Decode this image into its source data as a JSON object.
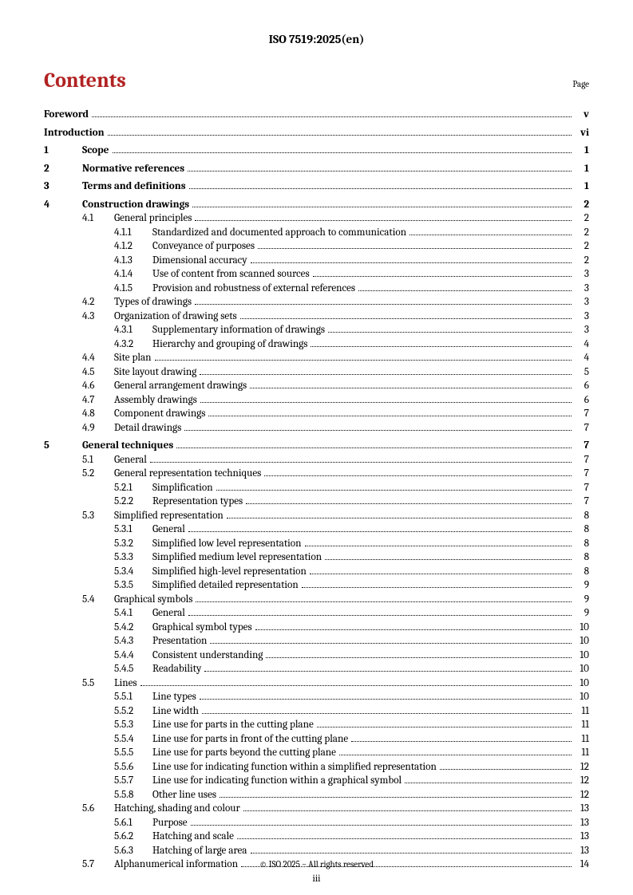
{
  "header": "ISO 7519:2025(en)",
  "title": "Contents",
  "page_label": "Page",
  "footer": "© ISO 2025 – All rights reserved",
  "page_number": "iii",
  "entries": [
    {
      "level": 0,
      "num": "",
      "label": "Foreword",
      "page": "v",
      "bold": true,
      "gap": false
    },
    {
      "level": 0,
      "num": "",
      "label": "Introduction",
      "page": "vi",
      "bold": true,
      "gap": true
    },
    {
      "level": 1,
      "num": "1",
      "label": "Scope",
      "page": "1",
      "bold": true,
      "gap": true
    },
    {
      "level": 1,
      "num": "2",
      "label": "Normative references",
      "page": "1",
      "bold": true,
      "gap": true
    },
    {
      "level": 1,
      "num": "3",
      "label": "Terms and definitions",
      "page": "1",
      "bold": true,
      "gap": true
    },
    {
      "level": 1,
      "num": "4",
      "label": "Construction drawings",
      "page": "2",
      "bold": true,
      "gap": true
    },
    {
      "level": 2,
      "num": "4.1",
      "label": "General principles",
      "page": "2",
      "bold": false,
      "gap": false
    },
    {
      "level": 3,
      "num": "4.1.1",
      "label": "Standardized and documented approach to communication",
      "page": "2",
      "bold": false,
      "gap": false
    },
    {
      "level": 3,
      "num": "4.1.2",
      "label": "Conveyance of purposes",
      "page": "2",
      "bold": false,
      "gap": false
    },
    {
      "level": 3,
      "num": "4.1.3",
      "label": "Dimensional accuracy",
      "page": "2",
      "bold": false,
      "gap": false
    },
    {
      "level": 3,
      "num": "4.1.4",
      "label": "Use of content from scanned sources",
      "page": "3",
      "bold": false,
      "gap": false
    },
    {
      "level": 3,
      "num": "4.1.5",
      "label": "Provision and robustness of external references",
      "page": "3",
      "bold": false,
      "gap": false
    },
    {
      "level": 2,
      "num": "4.2",
      "label": "Types of drawings",
      "page": "3",
      "bold": false,
      "gap": false
    },
    {
      "level": 2,
      "num": "4.3",
      "label": "Organization of drawing sets",
      "page": "3",
      "bold": false,
      "gap": false
    },
    {
      "level": 3,
      "num": "4.3.1",
      "label": "Supplementary information of drawings",
      "page": "3",
      "bold": false,
      "gap": false
    },
    {
      "level": 3,
      "num": "4.3.2",
      "label": "Hierarchy and grouping of drawings",
      "page": "4",
      "bold": false,
      "gap": false
    },
    {
      "level": 2,
      "num": "4.4",
      "label": "Site plan",
      "page": "4",
      "bold": false,
      "gap": false
    },
    {
      "level": 2,
      "num": "4.5",
      "label": "Site layout drawing",
      "page": "5",
      "bold": false,
      "gap": false
    },
    {
      "level": 2,
      "num": "4.6",
      "label": "General arrangement drawings",
      "page": "6",
      "bold": false,
      "gap": false
    },
    {
      "level": 2,
      "num": "4.7",
      "label": "Assembly drawings",
      "page": "6",
      "bold": false,
      "gap": false
    },
    {
      "level": 2,
      "num": "4.8",
      "label": "Component drawings",
      "page": "7",
      "bold": false,
      "gap": false
    },
    {
      "level": 2,
      "num": "4.9",
      "label": "Detail drawings",
      "page": "7",
      "bold": false,
      "gap": false
    },
    {
      "level": 1,
      "num": "5",
      "label": "General techniques",
      "page": "7",
      "bold": true,
      "gap": true
    },
    {
      "level": 2,
      "num": "5.1",
      "label": "General",
      "page": "7",
      "bold": false,
      "gap": false
    },
    {
      "level": 2,
      "num": "5.2",
      "label": "General representation techniques",
      "page": "7",
      "bold": false,
      "gap": false
    },
    {
      "level": 3,
      "num": "5.2.1",
      "label": "Simplification",
      "page": "7",
      "bold": false,
      "gap": false
    },
    {
      "level": 3,
      "num": "5.2.2",
      "label": "Representation types",
      "page": "7",
      "bold": false,
      "gap": false
    },
    {
      "level": 2,
      "num": "5.3",
      "label": "Simplified representation",
      "page": "8",
      "bold": false,
      "gap": false
    },
    {
      "level": 3,
      "num": "5.3.1",
      "label": "General",
      "page": "8",
      "bold": false,
      "gap": false
    },
    {
      "level": 3,
      "num": "5.3.2",
      "label": "Simplified low level representation",
      "page": "8",
      "bold": false,
      "gap": false
    },
    {
      "level": 3,
      "num": "5.3.3",
      "label": "Simplified medium level representation",
      "page": "8",
      "bold": false,
      "gap": false
    },
    {
      "level": 3,
      "num": "5.3.4",
      "label": "Simplified high-level representation",
      "page": "8",
      "bold": false,
      "gap": false
    },
    {
      "level": 3,
      "num": "5.3.5",
      "label": "Simplified detailed representation",
      "page": "9",
      "bold": false,
      "gap": false
    },
    {
      "level": 2,
      "num": "5.4",
      "label": "Graphical symbols",
      "page": "9",
      "bold": false,
      "gap": false
    },
    {
      "level": 3,
      "num": "5.4.1",
      "label": "General",
      "page": "9",
      "bold": false,
      "gap": false
    },
    {
      "level": 3,
      "num": "5.4.2",
      "label": "Graphical symbol types",
      "page": "10",
      "bold": false,
      "gap": false
    },
    {
      "level": 3,
      "num": "5.4.3",
      "label": "Presentation",
      "page": "10",
      "bold": false,
      "gap": false
    },
    {
      "level": 3,
      "num": "5.4.4",
      "label": "Consistent understanding",
      "page": "10",
      "bold": false,
      "gap": false
    },
    {
      "level": 3,
      "num": "5.4.5",
      "label": "Readability",
      "page": "10",
      "bold": false,
      "gap": false
    },
    {
      "level": 2,
      "num": "5.5",
      "label": "Lines",
      "page": "10",
      "bold": false,
      "gap": false
    },
    {
      "level": 3,
      "num": "5.5.1",
      "label": "Line types",
      "page": "10",
      "bold": false,
      "gap": false
    },
    {
      "level": 3,
      "num": "5.5.2",
      "label": "Line width",
      "page": "11",
      "bold": false,
      "gap": false
    },
    {
      "level": 3,
      "num": "5.5.3",
      "label": "Line use for parts in the cutting plane",
      "page": "11",
      "bold": false,
      "gap": false
    },
    {
      "level": 3,
      "num": "5.5.4",
      "label": "Line use for parts in front of the cutting plane",
      "page": "11",
      "bold": false,
      "gap": false
    },
    {
      "level": 3,
      "num": "5.5.5",
      "label": "Line use for parts beyond the cutting plane",
      "page": "11",
      "bold": false,
      "gap": false
    },
    {
      "level": 3,
      "num": "5.5.6",
      "label": "Line use for indicating function within a simplified representation",
      "page": "12",
      "bold": false,
      "gap": false
    },
    {
      "level": 3,
      "num": "5.5.7",
      "label": "Line use for indicating function within a graphical symbol",
      "page": "12",
      "bold": false,
      "gap": false
    },
    {
      "level": 3,
      "num": "5.5.8",
      "label": "Other line uses",
      "page": "12",
      "bold": false,
      "gap": false
    },
    {
      "level": 2,
      "num": "5.6",
      "label": "Hatching, shading and colour",
      "page": "13",
      "bold": false,
      "gap": false
    },
    {
      "level": 3,
      "num": "5.6.1",
      "label": "Purpose",
      "page": "13",
      "bold": false,
      "gap": false
    },
    {
      "level": 3,
      "num": "5.6.2",
      "label": "Hatching and scale",
      "page": "13",
      "bold": false,
      "gap": false
    },
    {
      "level": 3,
      "num": "5.6.3",
      "label": "Hatching of large area",
      "page": "13",
      "bold": false,
      "gap": false
    },
    {
      "level": 2,
      "num": "5.7",
      "label": "Alphanumerical information",
      "page": "14",
      "bold": false,
      "gap": false
    }
  ]
}
